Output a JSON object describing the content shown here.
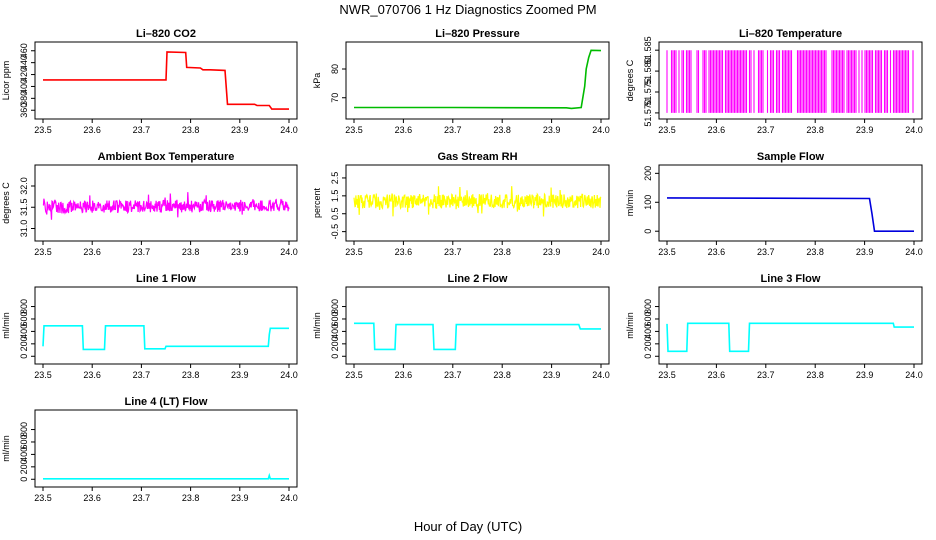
{
  "figure": {
    "title": "NWR_070706  1 Hz Diagnostics Zoomed PM",
    "xlabel": "Hour of Day (UTC)"
  },
  "chart_data": [
    {
      "type": "line",
      "title": "Li–820 CO2",
      "ylabel": "Licor ppm",
      "color": "#ff0000",
      "xlim": [
        23.5,
        24.0
      ],
      "ylim": [
        352,
        468
      ],
      "xticks": [
        "23.5",
        "23.6",
        "23.7",
        "23.8",
        "23.9",
        "24.0"
      ],
      "yticks": [
        "360",
        "380",
        "400",
        "420",
        "440",
        "460"
      ],
      "series": [
        {
          "x": [
            23.5,
            23.6,
            23.75,
            23.752,
            23.79,
            23.792,
            23.82,
            23.825,
            23.84,
            23.87,
            23.875,
            23.93,
            23.935,
            23.96,
            23.965,
            24.0
          ],
          "values": [
            411,
            411,
            411,
            458,
            457,
            432,
            431,
            428,
            428,
            427,
            370,
            370,
            368,
            368,
            362,
            362
          ]
        }
      ]
    },
    {
      "type": "line",
      "title": "Li–820 Pressure",
      "ylabel": "kPa",
      "color": "#00bb00",
      "xlim": [
        23.5,
        24.0
      ],
      "ylim": [
        64,
        88
      ],
      "xticks": [
        "23.5",
        "23.6",
        "23.7",
        "23.8",
        "23.9",
        "24.0"
      ],
      "yticks": [
        "70",
        "80"
      ],
      "series": [
        {
          "x": [
            23.5,
            23.7,
            23.93,
            23.94,
            23.96,
            23.967,
            23.97,
            23.975,
            23.98,
            24.0
          ],
          "values": [
            66.6,
            66.6,
            66.5,
            66.3,
            66.6,
            74,
            80,
            84,
            86.5,
            86.4
          ]
        }
      ]
    },
    {
      "type": "line",
      "title": "Li–820 Temperature",
      "ylabel": "degrees C",
      "color": "#ff00ff",
      "xlim": [
        23.5,
        24.0
      ],
      "ylim": [
        51.5695,
        51.586
      ],
      "xticks": [
        "23.5",
        "23.6",
        "23.7",
        "23.8",
        "23.9",
        "24.0"
      ],
      "yticks": [
        "51.570",
        "51.575",
        "51.580",
        "51.585"
      ],
      "series": [
        {
          "x": [],
          "values": [],
          "pattern": "dense alternation between 51.570 and 51.585 at 1 Hz"
        }
      ]
    },
    {
      "type": "line",
      "title": "Ambient Box Temperature",
      "ylabel": "degrees C",
      "color": "#ff00ff",
      "xlim": [
        23.5,
        24.0
      ],
      "ylim": [
        30.8,
        32.4
      ],
      "xticks": [
        "23.5",
        "23.6",
        "23.7",
        "23.8",
        "23.9",
        "24.0"
      ],
      "yticks": [
        "31.0",
        "31.5",
        "32.0"
      ],
      "series": [
        {
          "x": [
            23.5,
            24.0
          ],
          "values": [
            31.5,
            31.55
          ],
          "noise": 0.15,
          "pattern": "noisy around 31.5"
        }
      ]
    },
    {
      "type": "line",
      "title": "Gas Stream RH",
      "ylabel": "percent",
      "color": "#ffff00",
      "xlim": [
        23.5,
        24.0
      ],
      "ylim": [
        -0.8,
        3.0
      ],
      "xticks": [
        "23.5",
        "23.6",
        "23.7",
        "23.8",
        "23.9",
        "24.0"
      ],
      "yticks": [
        "-0.5",
        "0.5",
        "1.5",
        "2.5"
      ],
      "series": [
        {
          "x": [
            23.5,
            24.0
          ],
          "values": [
            1.2,
            1.2
          ],
          "noise": 0.4,
          "pattern": "noisy around 1.2"
        }
      ]
    },
    {
      "type": "line",
      "title": "Sample Flow",
      "ylabel": "ml/min",
      "color": "#0000dd",
      "xlim": [
        23.5,
        24.0
      ],
      "ylim": [
        -20,
        215
      ],
      "xticks": [
        "23.5",
        "23.6",
        "23.7",
        "23.8",
        "23.9",
        "24.0"
      ],
      "yticks": [
        "0",
        "100",
        "200"
      ],
      "series": [
        {
          "x": [
            23.5,
            23.7,
            23.91,
            23.915,
            23.92,
            24.0
          ],
          "values": [
            115,
            114,
            113,
            60,
            0,
            0
          ]
        }
      ]
    },
    {
      "type": "line",
      "title": "Line 1 Flow",
      "ylabel": "ml/min",
      "color": "#00ffff",
      "xlim": [
        23.5,
        24.0
      ],
      "ylim": [
        -60,
        1050
      ],
      "xticks": [
        "23.5",
        "23.6",
        "23.7",
        "23.8",
        "23.9",
        "24.0"
      ],
      "yticks": [
        "0",
        "200",
        "400",
        "600",
        "800"
      ],
      "series": [
        {
          "x": [
            23.5,
            23.502,
            23.58,
            23.582,
            23.625,
            23.627,
            23.705,
            23.707,
            23.748,
            23.75,
            23.958,
            23.96,
            23.962,
            24.0
          ],
          "values": [
            160,
            490,
            490,
            110,
            110,
            490,
            490,
            120,
            120,
            160,
            160,
            350,
            450,
            450
          ]
        }
      ]
    },
    {
      "type": "line",
      "title": "Line 2 Flow",
      "ylabel": "ml/min",
      "color": "#00ffff",
      "xlim": [
        23.5,
        24.0
      ],
      "ylim": [
        -60,
        1050
      ],
      "xticks": [
        "23.5",
        "23.6",
        "23.7",
        "23.8",
        "23.9",
        "24.0"
      ],
      "yticks": [
        "0",
        "200",
        "400",
        "600",
        "800"
      ],
      "series": [
        {
          "x": [
            23.5,
            23.54,
            23.542,
            23.583,
            23.585,
            23.66,
            23.662,
            23.705,
            23.707,
            23.955,
            23.958,
            24.0
          ],
          "values": [
            530,
            530,
            110,
            110,
            510,
            510,
            110,
            110,
            510,
            510,
            440,
            440
          ]
        }
      ]
    },
    {
      "type": "line",
      "title": "Line 3 Flow",
      "ylabel": "ml/min",
      "color": "#00ffff",
      "xlim": [
        23.5,
        24.0
      ],
      "ylim": [
        -60,
        1050
      ],
      "xticks": [
        "23.5",
        "23.6",
        "23.7",
        "23.8",
        "23.9",
        "24.0"
      ],
      "yticks": [
        "0",
        "200",
        "400",
        "600",
        "800"
      ],
      "series": [
        {
          "x": [
            23.5,
            23.502,
            23.54,
            23.542,
            23.625,
            23.627,
            23.665,
            23.667,
            23.958,
            23.96,
            24.0
          ],
          "values": [
            520,
            80,
            80,
            530,
            530,
            80,
            80,
            530,
            530,
            470,
            470
          ]
        }
      ]
    },
    {
      "type": "line",
      "title": "Line 4 (LT) Flow",
      "ylabel": "ml/min",
      "color": "#00ffff",
      "xlim": [
        23.5,
        24.0
      ],
      "ylim": [
        -60,
        1050
      ],
      "xticks": [
        "23.5",
        "23.6",
        "23.7",
        "23.8",
        "23.9",
        "24.0"
      ],
      "yticks": [
        "0",
        "200",
        "400",
        "600",
        "800"
      ],
      "series": [
        {
          "x": [
            23.5,
            23.958,
            23.96,
            23.962,
            24.0
          ],
          "values": [
            8,
            8,
            60,
            8,
            8
          ]
        }
      ]
    }
  ]
}
